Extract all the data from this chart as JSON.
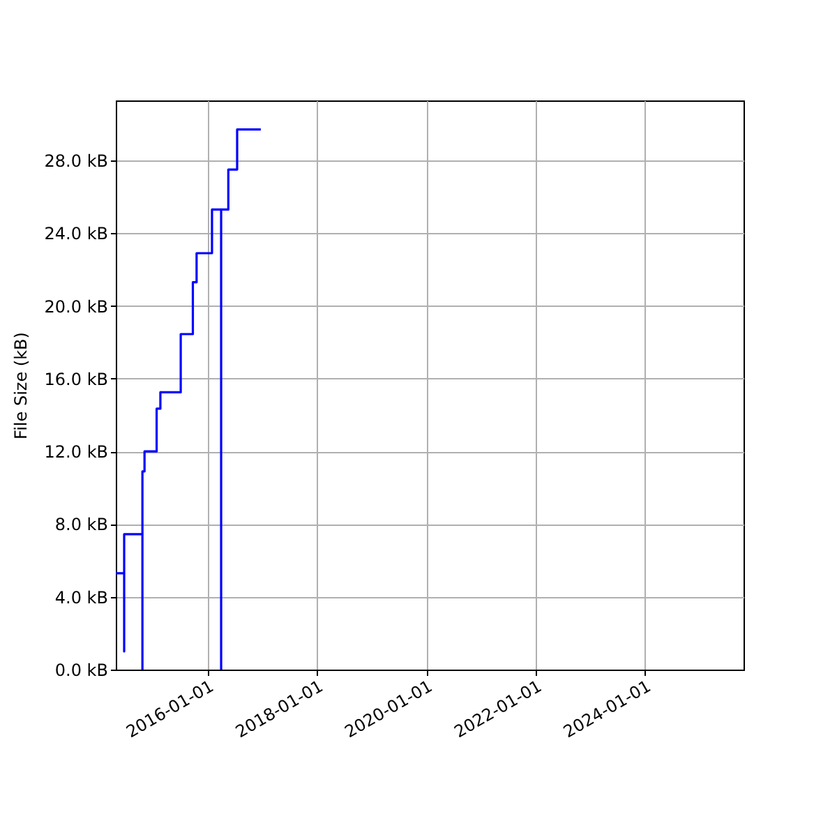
{
  "chart_data": {
    "type": "step",
    "ylabel": "File Size (kB)",
    "x": [
      "2014-04-26",
      "2014-06-21",
      "2014-06-21",
      "2014-10-21",
      "2014-10-21",
      "2014-11-04",
      "2015-01-24",
      "2015-02-18",
      "2015-07-04",
      "2015-09-23",
      "2015-10-18",
      "2016-01-29",
      "2016-03-30",
      "2016-03-30",
      "2016-05-17",
      "2016-07-15",
      "2016-12-20"
    ],
    "series": [
      {
        "color": "#0000ff",
        "values": [
          5.3,
          1.0,
          7.45,
          0,
          10.9,
          12.0,
          14.35,
          15.25,
          18.45,
          21.3,
          22.9,
          25.3,
          0,
          25.3,
          27.5,
          29.7,
          29.7
        ]
      }
    ],
    "xlim": [
      "2014-04-26",
      "2025-10-20"
    ],
    "ylim": [
      0,
      31.3
    ],
    "xticks": [
      "2016-01-01",
      "2018-01-01",
      "2020-01-01",
      "2022-01-01",
      "2024-01-01"
    ],
    "yticks": [
      {
        "value": 0,
        "label": "0.0 kB"
      },
      {
        "value": 4,
        "label": "4.0 kB"
      },
      {
        "value": 8,
        "label": "8.0 kB"
      },
      {
        "value": 12,
        "label": "12.0 kB"
      },
      {
        "value": 16,
        "label": "16.0 kB"
      },
      {
        "value": 20,
        "label": "20.0 kB"
      },
      {
        "value": 24,
        "label": "24.0 kB"
      },
      {
        "value": 28,
        "label": "28.0 kB"
      }
    ],
    "grid": true
  }
}
